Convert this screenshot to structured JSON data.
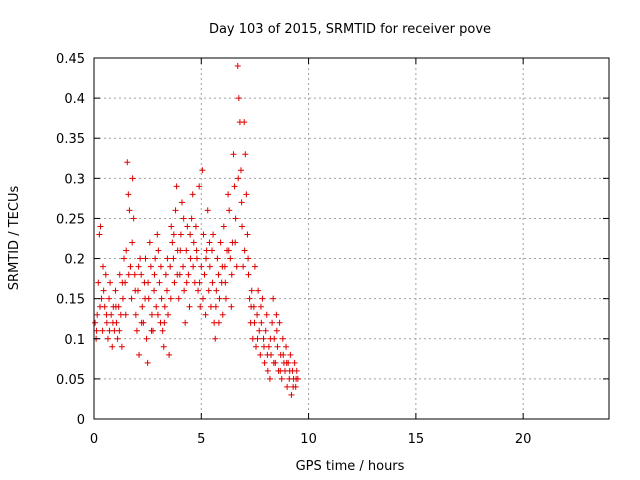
{
  "chart_data": {
    "type": "scatter",
    "title": "Day 103 of 2015, SRMTID for receiver pove",
    "xlabel": "GPS time / hours",
    "ylabel": "SRMTID / TECUs",
    "xlim": [
      0,
      24
    ],
    "ylim": [
      0,
      0.45
    ],
    "xticks": [
      0,
      5,
      10,
      15,
      20
    ],
    "yticks": [
      0,
      0.05,
      0.1,
      0.15,
      0.2,
      0.25,
      0.3,
      0.35,
      0.4,
      0.45
    ],
    "xtick_labels": [
      "0",
      "5",
      "10",
      "15",
      "20"
    ],
    "ytick_labels": [
      "0",
      "0.05",
      "0.1",
      "0.15",
      "0.2",
      "0.25",
      "0.3",
      "0.35",
      "0.4",
      "0.45"
    ],
    "grid": true,
    "marker": "+",
    "color": "#e00000",
    "series": [
      {
        "name": "SRMTID",
        "points": [
          [
            0.05,
            0.12
          ],
          [
            0.1,
            0.1
          ],
          [
            0.15,
            0.13
          ],
          [
            0.2,
            0.17
          ],
          [
            0.25,
            0.23
          ],
          [
            0.3,
            0.24
          ],
          [
            0.35,
            0.15
          ],
          [
            0.4,
            0.11
          ],
          [
            0.45,
            0.16
          ],
          [
            0.5,
            0.14
          ],
          [
            0.55,
            0.18
          ],
          [
            0.6,
            0.12
          ],
          [
            0.65,
            0.1
          ],
          [
            0.7,
            0.15
          ],
          [
            0.75,
            0.17
          ],
          [
            0.8,
            0.13
          ],
          [
            0.85,
            0.09
          ],
          [
            0.9,
            0.14
          ],
          [
            0.95,
            0.11
          ],
          [
            1.0,
            0.16
          ],
          [
            1.05,
            0.12
          ],
          [
            1.1,
            0.1
          ],
          [
            1.15,
            0.14
          ],
          [
            1.2,
            0.18
          ],
          [
            1.25,
            0.13
          ],
          [
            1.3,
            0.09
          ],
          [
            1.35,
            0.15
          ],
          [
            1.4,
            0.2
          ],
          [
            1.45,
            0.17
          ],
          [
            1.5,
            0.21
          ],
          [
            1.55,
            0.32
          ],
          [
            1.6,
            0.28
          ],
          [
            1.65,
            0.26
          ],
          [
            1.7,
            0.19
          ],
          [
            1.75,
            0.15
          ],
          [
            1.8,
            0.3
          ],
          [
            1.85,
            0.25
          ],
          [
            1.9,
            0.18
          ],
          [
            1.95,
            0.13
          ],
          [
            2.0,
            0.11
          ],
          [
            2.05,
            0.16
          ],
          [
            2.1,
            0.08
          ],
          [
            2.15,
            0.2
          ],
          [
            2.2,
            0.18
          ],
          [
            2.25,
            0.14
          ],
          [
            2.3,
            0.12
          ],
          [
            2.35,
            0.17
          ],
          [
            2.4,
            0.2
          ],
          [
            2.45,
            0.1
          ],
          [
            2.5,
            0.07
          ],
          [
            2.55,
            0.15
          ],
          [
            2.6,
            0.22
          ],
          [
            2.65,
            0.19
          ],
          [
            2.7,
            0.13
          ],
          [
            2.75,
            0.11
          ],
          [
            2.8,
            0.16
          ],
          [
            2.85,
            0.2
          ],
          [
            2.9,
            0.14
          ],
          [
            2.95,
            0.23
          ],
          [
            3.0,
            0.21
          ],
          [
            3.05,
            0.17
          ],
          [
            3.1,
            0.12
          ],
          [
            3.15,
            0.15
          ],
          [
            3.2,
            0.11
          ],
          [
            3.25,
            0.09
          ],
          [
            3.3,
            0.14
          ],
          [
            3.35,
            0.18
          ],
          [
            3.4,
            0.16
          ],
          [
            3.45,
            0.13
          ],
          [
            3.5,
            0.08
          ],
          [
            3.55,
            0.19
          ],
          [
            3.6,
            0.24
          ],
          [
            3.65,
            0.22
          ],
          [
            3.7,
            0.2
          ],
          [
            3.75,
            0.17
          ],
          [
            3.8,
            0.26
          ],
          [
            3.85,
            0.29
          ],
          [
            3.9,
            0.21
          ],
          [
            3.95,
            0.15
          ],
          [
            4.0,
            0.18
          ],
          [
            4.05,
            0.23
          ],
          [
            4.1,
            0.27
          ],
          [
            4.15,
            0.19
          ],
          [
            4.2,
            0.16
          ],
          [
            4.25,
            0.12
          ],
          [
            4.3,
            0.21
          ],
          [
            4.35,
            0.24
          ],
          [
            4.4,
            0.18
          ],
          [
            4.45,
            0.14
          ],
          [
            4.5,
            0.2
          ],
          [
            4.55,
            0.25
          ],
          [
            4.6,
            0.28
          ],
          [
            4.65,
            0.22
          ],
          [
            4.7,
            0.17
          ],
          [
            4.75,
            0.24
          ],
          [
            4.8,
            0.2
          ],
          [
            4.85,
            0.16
          ],
          [
            4.9,
            0.29
          ],
          [
            4.95,
            0.14
          ],
          [
            5.0,
            0.19
          ],
          [
            5.05,
            0.31
          ],
          [
            5.1,
            0.23
          ],
          [
            5.15,
            0.18
          ],
          [
            5.2,
            0.13
          ],
          [
            5.25,
            0.21
          ],
          [
            5.3,
            0.26
          ],
          [
            5.35,
            0.16
          ],
          [
            5.4,
            0.19
          ],
          [
            5.45,
            0.14
          ],
          [
            5.5,
            0.21
          ],
          [
            5.55,
            0.23
          ],
          [
            5.6,
            0.12
          ],
          [
            5.65,
            0.1
          ],
          [
            5.7,
            0.16
          ],
          [
            5.75,
            0.2
          ],
          [
            5.8,
            0.18
          ],
          [
            5.85,
            0.15
          ],
          [
            5.9,
            0.22
          ],
          [
            5.95,
            0.17
          ],
          [
            6.0,
            0.13
          ],
          [
            6.05,
            0.24
          ],
          [
            6.1,
            0.19
          ],
          [
            6.15,
            0.15
          ],
          [
            6.2,
            0.21
          ],
          [
            6.25,
            0.28
          ],
          [
            6.3,
            0.26
          ],
          [
            6.35,
            0.2
          ],
          [
            6.4,
            0.14
          ],
          [
            6.45,
            0.22
          ],
          [
            6.5,
            0.33
          ],
          [
            6.55,
            0.29
          ],
          [
            6.6,
            0.25
          ],
          [
            6.65,
            0.19
          ],
          [
            6.7,
            0.44
          ],
          [
            6.75,
            0.4
          ],
          [
            6.8,
            0.37
          ],
          [
            6.85,
            0.31
          ],
          [
            6.9,
            0.24
          ],
          [
            6.95,
            0.19
          ],
          [
            7.0,
            0.37
          ],
          [
            7.05,
            0.33
          ],
          [
            7.1,
            0.28
          ],
          [
            7.15,
            0.23
          ],
          [
            7.2,
            0.18
          ],
          [
            7.25,
            0.15
          ],
          [
            7.3,
            0.12
          ],
          [
            7.35,
            0.16
          ],
          [
            7.4,
            0.1
          ],
          [
            7.45,
            0.14
          ],
          [
            7.5,
            0.19
          ],
          [
            7.55,
            0.09
          ],
          [
            7.6,
            0.13
          ],
          [
            7.65,
            0.16
          ],
          [
            7.7,
            0.11
          ],
          [
            7.75,
            0.08
          ],
          [
            7.8,
            0.12
          ],
          [
            7.85,
            0.15
          ],
          [
            7.9,
            0.1
          ],
          [
            7.95,
            0.07
          ],
          [
            8.0,
            0.11
          ],
          [
            8.05,
            0.13
          ],
          [
            8.1,
            0.06
          ],
          [
            8.15,
            0.09
          ],
          [
            8.2,
            0.05
          ],
          [
            8.25,
            0.08
          ],
          [
            8.3,
            0.12
          ],
          [
            8.35,
            0.15
          ],
          [
            8.4,
            0.1
          ],
          [
            8.45,
            0.07
          ],
          [
            8.5,
            0.13
          ],
          [
            8.55,
            0.09
          ],
          [
            8.6,
            0.06
          ],
          [
            8.65,
            0.12
          ],
          [
            8.7,
            0.08
          ],
          [
            8.75,
            0.05
          ],
          [
            8.8,
            0.1
          ],
          [
            8.85,
            0.07
          ],
          [
            8.9,
            0.06
          ],
          [
            8.95,
            0.09
          ],
          [
            9.0,
            0.04
          ],
          [
            9.05,
            0.07
          ],
          [
            9.1,
            0.05
          ],
          [
            9.15,
            0.08
          ],
          [
            9.2,
            0.03
          ],
          [
            9.25,
            0.06
          ],
          [
            9.3,
            0.05
          ],
          [
            9.35,
            0.07
          ],
          [
            9.4,
            0.04
          ],
          [
            9.45,
            0.06
          ],
          [
            9.5,
            0.05
          ],
          [
            0.12,
            0.11
          ],
          [
            0.28,
            0.14
          ],
          [
            0.42,
            0.19
          ],
          [
            0.58,
            0.13
          ],
          [
            0.72,
            0.11
          ],
          [
            0.88,
            0.12
          ],
          [
            1.02,
            0.14
          ],
          [
            1.18,
            0.11
          ],
          [
            1.32,
            0.17
          ],
          [
            1.48,
            0.13
          ],
          [
            1.62,
            0.18
          ],
          [
            1.78,
            0.22
          ],
          [
            1.92,
            0.16
          ],
          [
            2.08,
            0.19
          ],
          [
            2.22,
            0.12
          ],
          [
            2.38,
            0.15
          ],
          [
            2.52,
            0.17
          ],
          [
            2.68,
            0.11
          ],
          [
            2.82,
            0.18
          ],
          [
            2.98,
            0.13
          ],
          [
            3.12,
            0.19
          ],
          [
            3.28,
            0.12
          ],
          [
            3.42,
            0.2
          ],
          [
            3.58,
            0.15
          ],
          [
            3.72,
            0.23
          ],
          [
            3.88,
            0.18
          ],
          [
            4.02,
            0.21
          ],
          [
            4.18,
            0.25
          ],
          [
            4.32,
            0.17
          ],
          [
            4.48,
            0.23
          ],
          [
            4.62,
            0.19
          ],
          [
            4.78,
            0.21
          ],
          [
            4.92,
            0.17
          ],
          [
            5.08,
            0.15
          ],
          [
            5.22,
            0.2
          ],
          [
            5.38,
            0.22
          ],
          [
            5.52,
            0.17
          ],
          [
            5.68,
            0.14
          ],
          [
            5.82,
            0.12
          ],
          [
            5.98,
            0.19
          ],
          [
            6.12,
            0.17
          ],
          [
            6.28,
            0.21
          ],
          [
            6.42,
            0.18
          ],
          [
            6.58,
            0.22
          ],
          [
            6.72,
            0.3
          ],
          [
            6.88,
            0.27
          ],
          [
            7.02,
            0.21
          ],
          [
            7.18,
            0.2
          ],
          [
            7.32,
            0.14
          ],
          [
            7.48,
            0.12
          ],
          [
            7.62,
            0.1
          ],
          [
            7.78,
            0.14
          ],
          [
            7.92,
            0.09
          ],
          [
            8.08,
            0.08
          ],
          [
            8.22,
            0.1
          ],
          [
            8.38,
            0.07
          ],
          [
            8.52,
            0.11
          ],
          [
            8.68,
            0.06
          ],
          [
            8.82,
            0.08
          ],
          [
            8.98,
            0.07
          ],
          [
            9.12,
            0.06
          ],
          [
            9.28,
            0.04
          ],
          [
            9.42,
            0.05
          ]
        ]
      }
    ]
  }
}
